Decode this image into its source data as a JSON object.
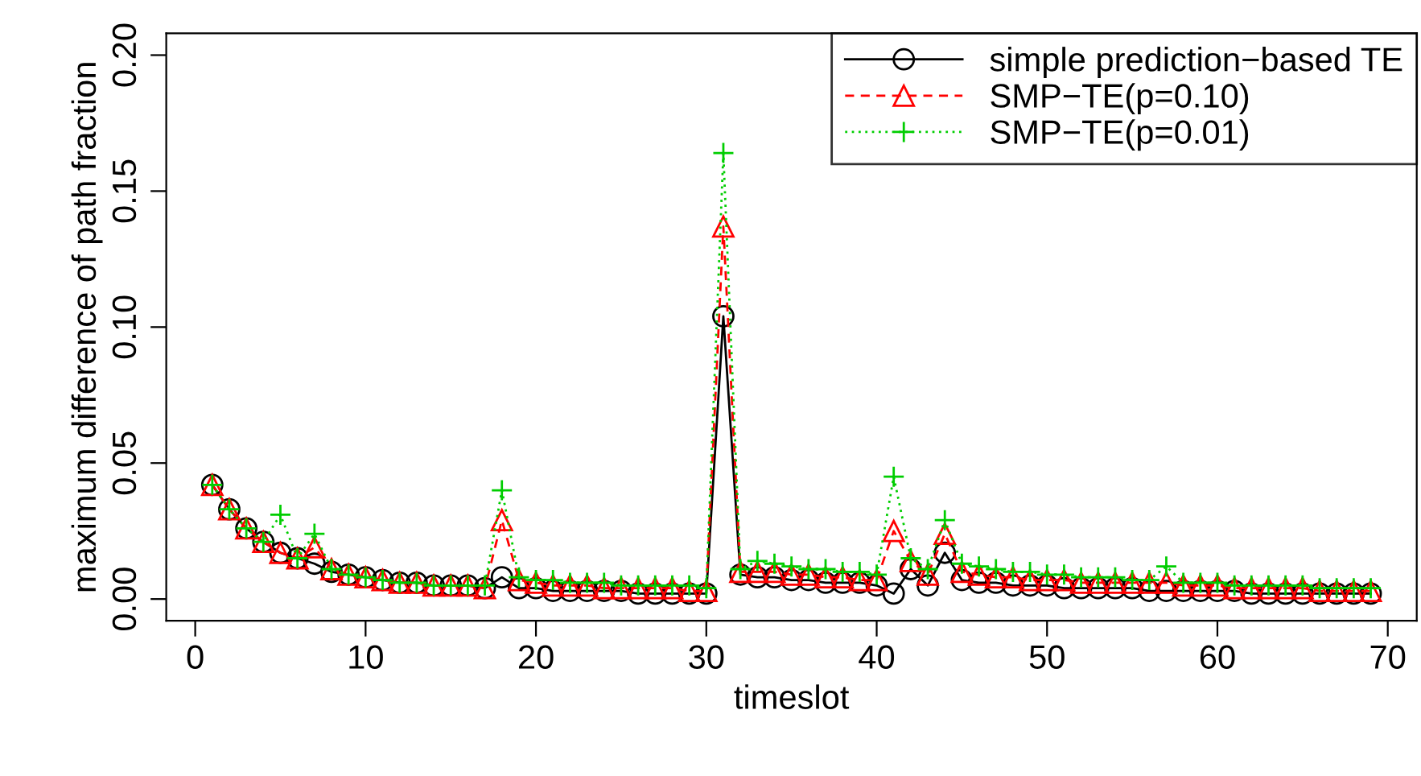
{
  "chart_data": {
    "type": "line",
    "xlabel": "timeslot",
    "ylabel": "maximum difference of path fraction",
    "x": [
      1,
      2,
      3,
      4,
      5,
      6,
      7,
      8,
      9,
      10,
      11,
      12,
      13,
      14,
      15,
      16,
      17,
      18,
      19,
      20,
      21,
      22,
      23,
      24,
      25,
      26,
      27,
      28,
      29,
      30,
      31,
      32,
      33,
      34,
      35,
      36,
      37,
      38,
      39,
      40,
      41,
      42,
      43,
      44,
      45,
      46,
      47,
      48,
      49,
      50,
      51,
      52,
      53,
      54,
      55,
      56,
      57,
      58,
      59,
      60,
      61,
      62,
      63,
      64,
      65,
      66,
      67,
      68,
      69
    ],
    "series": [
      {
        "name": "simple prediction−based TE",
        "color": "#000000",
        "marker": "circle",
        "line_style": "solid",
        "values": [
          0.042,
          0.033,
          0.026,
          0.021,
          0.017,
          0.015,
          0.013,
          0.01,
          0.009,
          0.008,
          0.007,
          0.006,
          0.006,
          0.005,
          0.005,
          0.005,
          0.004,
          0.008,
          0.004,
          0.004,
          0.003,
          0.003,
          0.003,
          0.003,
          0.003,
          0.002,
          0.002,
          0.002,
          0.002,
          0.002,
          0.104,
          0.009,
          0.008,
          0.008,
          0.007,
          0.007,
          0.006,
          0.006,
          0.006,
          0.005,
          0.002,
          0.011,
          0.005,
          0.017,
          0.007,
          0.006,
          0.006,
          0.005,
          0.005,
          0.005,
          0.004,
          0.004,
          0.004,
          0.004,
          0.004,
          0.003,
          0.003,
          0.003,
          0.003,
          0.003,
          0.003,
          0.002,
          0.002,
          0.002,
          0.002,
          0.002,
          0.002,
          0.002,
          0.002
        ]
      },
      {
        "name": "SMP−TE(p=0.10)",
        "color": "#ff0000",
        "marker": "triangle",
        "line_style": "dashed",
        "values": [
          0.042,
          0.033,
          0.026,
          0.021,
          0.017,
          0.015,
          0.019,
          0.011,
          0.009,
          0.008,
          0.007,
          0.006,
          0.006,
          0.005,
          0.005,
          0.005,
          0.004,
          0.029,
          0.007,
          0.006,
          0.005,
          0.005,
          0.005,
          0.004,
          0.004,
          0.004,
          0.004,
          0.004,
          0.003,
          0.003,
          0.137,
          0.01,
          0.01,
          0.01,
          0.009,
          0.009,
          0.008,
          0.008,
          0.007,
          0.007,
          0.025,
          0.014,
          0.009,
          0.024,
          0.01,
          0.009,
          0.008,
          0.008,
          0.007,
          0.007,
          0.007,
          0.006,
          0.006,
          0.006,
          0.006,
          0.006,
          0.006,
          0.005,
          0.005,
          0.005,
          0.004,
          0.004,
          0.004,
          0.004,
          0.004,
          0.003,
          0.003,
          0.003,
          0.003
        ]
      },
      {
        "name": "SMP−TE(p=0.01)",
        "color": "#00cd00",
        "marker": "cross",
        "line_style": "dotted",
        "values": [
          0.042,
          0.033,
          0.026,
          0.021,
          0.031,
          0.015,
          0.024,
          0.011,
          0.009,
          0.008,
          0.007,
          0.006,
          0.006,
          0.005,
          0.005,
          0.005,
          0.005,
          0.04,
          0.008,
          0.007,
          0.007,
          0.006,
          0.006,
          0.006,
          0.005,
          0.005,
          0.005,
          0.005,
          0.005,
          0.004,
          0.164,
          0.011,
          0.014,
          0.013,
          0.012,
          0.011,
          0.011,
          0.01,
          0.01,
          0.009,
          0.045,
          0.015,
          0.011,
          0.029,
          0.013,
          0.012,
          0.011,
          0.01,
          0.01,
          0.009,
          0.009,
          0.008,
          0.008,
          0.008,
          0.007,
          0.007,
          0.012,
          0.006,
          0.006,
          0.006,
          0.005,
          0.005,
          0.005,
          0.005,
          0.005,
          0.004,
          0.004,
          0.004,
          0.004
        ]
      }
    ],
    "xlim": [
      -1.7,
      71.7
    ],
    "xticks": [
      0,
      10,
      20,
      30,
      40,
      50,
      60,
      70
    ],
    "ylim": [
      -0.008,
      0.208
    ],
    "yticks": [
      {
        "value": 0,
        "label": "0.00"
      },
      {
        "value": 0.05,
        "label": "0.05"
      },
      {
        "value": 0.1,
        "label": "0.10"
      },
      {
        "value": 0.15,
        "label": "0.15"
      },
      {
        "value": 0.2,
        "label": "0.20"
      }
    ],
    "legend": "top right",
    "grid": false
  }
}
